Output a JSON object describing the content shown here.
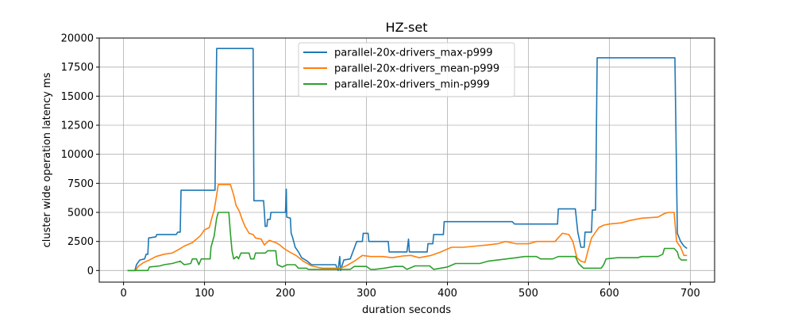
{
  "chart_data": {
    "type": "line",
    "title": "HZ-set",
    "xlabel": "duration seconds",
    "ylabel": "cluster wide operation latency ms",
    "xlim": [
      -30,
      730
    ],
    "ylim": [
      -1000,
      20000
    ],
    "xticks": [
      0,
      100,
      200,
      300,
      400,
      500,
      600,
      700
    ],
    "yticks": [
      0,
      2500,
      5000,
      7500,
      10000,
      12500,
      15000,
      17500,
      20000
    ],
    "xtick_labels": [
      "0",
      "100",
      "200",
      "300",
      "400",
      "500",
      "600",
      "700"
    ],
    "ytick_labels": [
      "0",
      "2500",
      "5000",
      "7500",
      "10000",
      "12500",
      "15000",
      "17500",
      "20000"
    ],
    "grid": true,
    "legend_position": "top-center",
    "series": [
      {
        "name": "parallel-20x-drivers_max-p999",
        "color": "#1f77b4",
        "points": [
          [
            5,
            0
          ],
          [
            14,
            0
          ],
          [
            16,
            500
          ],
          [
            20,
            900
          ],
          [
            26,
            1000
          ],
          [
            28,
            1400
          ],
          [
            30,
            1400
          ],
          [
            31,
            2800
          ],
          [
            40,
            2900
          ],
          [
            41,
            3100
          ],
          [
            65,
            3100
          ],
          [
            67,
            3300
          ],
          [
            70,
            3300
          ],
          [
            71,
            6900
          ],
          [
            113,
            6900
          ],
          [
            115,
            19100
          ],
          [
            160,
            19100
          ],
          [
            161,
            6000
          ],
          [
            173,
            6000
          ],
          [
            174,
            5000
          ],
          [
            175,
            3800
          ],
          [
            177,
            3800
          ],
          [
            178,
            4400
          ],
          [
            181,
            4400
          ],
          [
            182,
            5000
          ],
          [
            200,
            5000
          ],
          [
            201,
            7000
          ],
          [
            201.5,
            4600
          ],
          [
            206,
            4500
          ],
          [
            207,
            3200
          ],
          [
            209,
            2800
          ],
          [
            212,
            2000
          ],
          [
            216,
            1600
          ],
          [
            220,
            1100
          ],
          [
            227,
            800
          ],
          [
            232,
            500
          ],
          [
            262,
            500
          ],
          [
            265,
            0
          ],
          [
            267,
            1200
          ],
          [
            268,
            0
          ],
          [
            272,
            900
          ],
          [
            280,
            1000
          ],
          [
            288,
            2500
          ],
          [
            295,
            2500
          ],
          [
            296,
            3200
          ],
          [
            302,
            3200
          ],
          [
            303,
            2500
          ],
          [
            327,
            2500
          ],
          [
            328,
            1600
          ],
          [
            350,
            1600
          ],
          [
            352,
            2700
          ],
          [
            353,
            1600
          ],
          [
            375,
            1600
          ],
          [
            376,
            2300
          ],
          [
            382,
            2300
          ],
          [
            383,
            3100
          ],
          [
            395,
            3100
          ],
          [
            396,
            4200
          ],
          [
            470,
            4200
          ],
          [
            480,
            4200
          ],
          [
            483,
            4000
          ],
          [
            536,
            4000
          ],
          [
            537,
            5300
          ],
          [
            558,
            5300
          ],
          [
            561,
            3300
          ],
          [
            565,
            2000
          ],
          [
            569,
            2000
          ],
          [
            570,
            3300
          ],
          [
            578,
            3300
          ],
          [
            579,
            5200
          ],
          [
            583,
            5200
          ],
          [
            585,
            18300
          ],
          [
            681,
            18300
          ],
          [
            684,
            3200
          ],
          [
            688,
            2500
          ],
          [
            692,
            2100
          ],
          [
            696,
            1900
          ]
        ]
      },
      {
        "name": "parallel-20x-drivers_mean-p999",
        "color": "#ff7f0e",
        "points": [
          [
            5,
            0
          ],
          [
            15,
            0
          ],
          [
            18,
            350
          ],
          [
            25,
            700
          ],
          [
            32,
            900
          ],
          [
            40,
            1200
          ],
          [
            50,
            1400
          ],
          [
            60,
            1500
          ],
          [
            68,
            1800
          ],
          [
            75,
            2100
          ],
          [
            85,
            2400
          ],
          [
            95,
            3000
          ],
          [
            100,
            3500
          ],
          [
            106,
            3700
          ],
          [
            109,
            4500
          ],
          [
            112,
            5200
          ],
          [
            115,
            6500
          ],
          [
            117,
            7400
          ],
          [
            132,
            7400
          ],
          [
            136,
            6500
          ],
          [
            139,
            5600
          ],
          [
            143,
            5100
          ],
          [
            147,
            4300
          ],
          [
            150,
            3800
          ],
          [
            155,
            3200
          ],
          [
            160,
            3100
          ],
          [
            163,
            2800
          ],
          [
            170,
            2700
          ],
          [
            174,
            2200
          ],
          [
            180,
            2600
          ],
          [
            188,
            2400
          ],
          [
            193,
            2200
          ],
          [
            198,
            1900
          ],
          [
            205,
            1600
          ],
          [
            213,
            1300
          ],
          [
            222,
            800
          ],
          [
            232,
            400
          ],
          [
            245,
            200
          ],
          [
            268,
            200
          ],
          [
            275,
            400
          ],
          [
            285,
            800
          ],
          [
            295,
            1300
          ],
          [
            305,
            1200
          ],
          [
            320,
            1200
          ],
          [
            332,
            1100
          ],
          [
            345,
            1250
          ],
          [
            355,
            1300
          ],
          [
            365,
            1100
          ],
          [
            380,
            1300
          ],
          [
            392,
            1600
          ],
          [
            405,
            2000
          ],
          [
            420,
            2000
          ],
          [
            435,
            2100
          ],
          [
            450,
            2200
          ],
          [
            462,
            2300
          ],
          [
            472,
            2500
          ],
          [
            485,
            2300
          ],
          [
            500,
            2300
          ],
          [
            510,
            2500
          ],
          [
            533,
            2500
          ],
          [
            538,
            2900
          ],
          [
            542,
            3200
          ],
          [
            550,
            3100
          ],
          [
            555,
            2500
          ],
          [
            560,
            1100
          ],
          [
            565,
            800
          ],
          [
            570,
            700
          ],
          [
            574,
            1800
          ],
          [
            578,
            2800
          ],
          [
            583,
            3300
          ],
          [
            587,
            3700
          ],
          [
            593,
            3900
          ],
          [
            600,
            4000
          ],
          [
            615,
            4100
          ],
          [
            625,
            4300
          ],
          [
            640,
            4500
          ],
          [
            660,
            4600
          ],
          [
            668,
            4900
          ],
          [
            673,
            5000
          ],
          [
            680,
            5000
          ],
          [
            683,
            2500
          ],
          [
            688,
            2000
          ],
          [
            692,
            1300
          ],
          [
            696,
            1300
          ]
        ]
      },
      {
        "name": "parallel-20x-drivers_min-p999",
        "color": "#2ca02c",
        "points": [
          [
            5,
            0
          ],
          [
            30,
            0
          ],
          [
            32,
            300
          ],
          [
            45,
            400
          ],
          [
            50,
            500
          ],
          [
            60,
            600
          ],
          [
            70,
            800
          ],
          [
            75,
            500
          ],
          [
            83,
            600
          ],
          [
            85,
            1000
          ],
          [
            90,
            1000
          ],
          [
            93,
            500
          ],
          [
            96,
            1000
          ],
          [
            107,
            1000
          ],
          [
            108,
            2000
          ],
          [
            112,
            3000
          ],
          [
            114,
            4000
          ],
          [
            115,
            4500
          ],
          [
            117,
            5000
          ],
          [
            130,
            5000
          ],
          [
            132,
            3200
          ],
          [
            134,
            1700
          ],
          [
            136,
            1000
          ],
          [
            140,
            1200
          ],
          [
            142,
            1000
          ],
          [
            145,
            1500
          ],
          [
            155,
            1500
          ],
          [
            157,
            1000
          ],
          [
            161,
            1000
          ],
          [
            163,
            1500
          ],
          [
            175,
            1500
          ],
          [
            178,
            1700
          ],
          [
            188,
            1700
          ],
          [
            190,
            500
          ],
          [
            196,
            300
          ],
          [
            202,
            500
          ],
          [
            212,
            500
          ],
          [
            216,
            200
          ],
          [
            226,
            200
          ],
          [
            228,
            100
          ],
          [
            245,
            100
          ],
          [
            270,
            100
          ],
          [
            280,
            100
          ],
          [
            285,
            350
          ],
          [
            300,
            350
          ],
          [
            305,
            100
          ],
          [
            310,
            100
          ],
          [
            322,
            200
          ],
          [
            335,
            350
          ],
          [
            345,
            350
          ],
          [
            350,
            100
          ],
          [
            360,
            400
          ],
          [
            378,
            400
          ],
          [
            383,
            100
          ],
          [
            400,
            300
          ],
          [
            410,
            600
          ],
          [
            440,
            600
          ],
          [
            450,
            800
          ],
          [
            485,
            1100
          ],
          [
            495,
            1200
          ],
          [
            510,
            1200
          ],
          [
            515,
            1000
          ],
          [
            530,
            1000
          ],
          [
            537,
            1200
          ],
          [
            558,
            1200
          ],
          [
            562,
            600
          ],
          [
            568,
            200
          ],
          [
            590,
            200
          ],
          [
            593,
            500
          ],
          [
            596,
            1000
          ],
          [
            610,
            1100
          ],
          [
            635,
            1100
          ],
          [
            640,
            1200
          ],
          [
            655,
            1200
          ],
          [
            660,
            1200
          ],
          [
            666,
            1400
          ],
          [
            668,
            1900
          ],
          [
            680,
            1900
          ],
          [
            684,
            1600
          ],
          [
            686,
            1100
          ],
          [
            689,
            900
          ],
          [
            696,
            900
          ]
        ]
      }
    ]
  }
}
